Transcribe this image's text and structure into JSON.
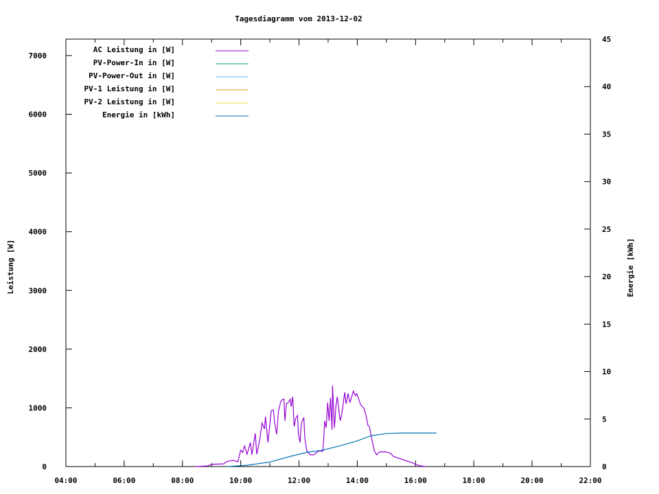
{
  "chart_data": {
    "type": "line",
    "title": "Tagesdiagramm vom 2013-12-02",
    "ylabel": "Leistung [W]",
    "y2label": "Energie [kWh]",
    "xlim": [
      "04:00",
      "22:00"
    ],
    "ylim": [
      0,
      7280
    ],
    "y2lim": [
      0,
      45
    ],
    "xticks": [
      "04:00",
      "06:00",
      "08:00",
      "10:00",
      "12:00",
      "14:00",
      "16:00",
      "18:00",
      "20:00",
      "22:00"
    ],
    "yticks": [
      0,
      1000,
      2000,
      3000,
      4000,
      5000,
      6000,
      7000
    ],
    "y2ticks": [
      0,
      5,
      10,
      15,
      20,
      25,
      30,
      35,
      40,
      45
    ],
    "grid": false,
    "legend_placement": "top-left",
    "series": [
      {
        "name": "AC Leistung in [W]",
        "color": "#9400D3",
        "axis": "y",
        "points": [
          [
            "08:27",
            0
          ],
          [
            "08:51",
            10
          ],
          [
            "09:02",
            40
          ],
          [
            "09:24",
            45
          ],
          [
            "09:33",
            90
          ],
          [
            "09:45",
            105
          ],
          [
            "09:54",
            80
          ],
          [
            "09:57",
            175
          ],
          [
            "10:00",
            280
          ],
          [
            "10:04",
            240
          ],
          [
            "10:08",
            350
          ],
          [
            "10:13",
            210
          ],
          [
            "10:20",
            410
          ],
          [
            "10:23",
            200
          ],
          [
            "10:30",
            565
          ],
          [
            "10:33",
            210
          ],
          [
            "10:39",
            450
          ],
          [
            "10:44",
            740
          ],
          [
            "10:49",
            640
          ],
          [
            "10:51",
            850
          ],
          [
            "10:56",
            410
          ],
          [
            "11:03",
            955
          ],
          [
            "11:07",
            965
          ],
          [
            "11:10",
            740
          ],
          [
            "11:14",
            550
          ],
          [
            "11:18",
            955
          ],
          [
            "11:22",
            1090
          ],
          [
            "11:24",
            1130
          ],
          [
            "11:29",
            1150
          ],
          [
            "11:31",
            780
          ],
          [
            "11:34",
            1070
          ],
          [
            "11:38",
            1090
          ],
          [
            "11:42",
            1150
          ],
          [
            "11:44",
            1020
          ],
          [
            "11:47",
            1190
          ],
          [
            "11:50",
            680
          ],
          [
            "11:53",
            815
          ],
          [
            "11:57",
            870
          ],
          [
            "11:59",
            550
          ],
          [
            "12:02",
            410
          ],
          [
            "12:05",
            740
          ],
          [
            "12:10",
            835
          ],
          [
            "12:12",
            490
          ],
          [
            "12:16",
            270
          ],
          [
            "12:23",
            200
          ],
          [
            "12:30",
            200
          ],
          [
            "12:42",
            270
          ],
          [
            "12:49",
            260
          ],
          [
            "12:51",
            470
          ],
          [
            "12:53",
            780
          ],
          [
            "12:56",
            660
          ],
          [
            "12:59",
            1090
          ],
          [
            "13:02",
            780
          ],
          [
            "13:05",
            1170
          ],
          [
            "13:08",
            625
          ],
          [
            "13:09",
            1380
          ],
          [
            "13:13",
            660
          ],
          [
            "13:16",
            1030
          ],
          [
            "13:19",
            1190
          ],
          [
            "13:23",
            890
          ],
          [
            "13:25",
            780
          ],
          [
            "13:29",
            935
          ],
          [
            "13:34",
            1265
          ],
          [
            "13:37",
            1070
          ],
          [
            "13:41",
            1245
          ],
          [
            "13:45",
            1090
          ],
          [
            "13:52",
            1285
          ],
          [
            "13:56",
            1205
          ],
          [
            "13:59",
            1245
          ],
          [
            "14:07",
            1050
          ],
          [
            "14:14",
            990
          ],
          [
            "14:18",
            870
          ],
          [
            "14:22",
            700
          ],
          [
            "14:25",
            680
          ],
          [
            "14:29",
            505
          ],
          [
            "14:35",
            270
          ],
          [
            "14:40",
            200
          ],
          [
            "14:46",
            250
          ],
          [
            "14:58",
            250
          ],
          [
            "15:08",
            230
          ],
          [
            "15:15",
            170
          ],
          [
            "15:24",
            145
          ],
          [
            "15:38",
            105
          ],
          [
            "15:53",
            65
          ],
          [
            "16:02",
            30
          ],
          [
            "16:11",
            10
          ],
          [
            "16:21",
            0
          ]
        ]
      },
      {
        "name": "PV-Power-In in [W]",
        "color": "#009E73",
        "axis": "y",
        "points": []
      },
      {
        "name": "PV-Power-Out in [W]",
        "color": "#56B4E9",
        "axis": "y",
        "points": []
      },
      {
        "name": "PV-1 Leistung in [W]",
        "color": "#E69F00",
        "axis": "y",
        "points": []
      },
      {
        "name": "PV-2 Leistung in [W]",
        "color": "#F0E442",
        "axis": "y",
        "points": []
      },
      {
        "name": "Energie in [kWh]",
        "color": "#0072B2",
        "axis": "y2",
        "points": [
          [
            "09:33",
            0
          ],
          [
            "10:13",
            0.14
          ],
          [
            "11:00",
            0.48
          ],
          [
            "11:43",
            1.08
          ],
          [
            "12:16",
            1.49
          ],
          [
            "12:49",
            1.73
          ],
          [
            "13:26",
            2.21
          ],
          [
            "13:59",
            2.69
          ],
          [
            "14:28",
            3.24
          ],
          [
            "15:01",
            3.48
          ],
          [
            "15:29",
            3.53
          ],
          [
            "16:43",
            3.53
          ]
        ]
      }
    ]
  }
}
